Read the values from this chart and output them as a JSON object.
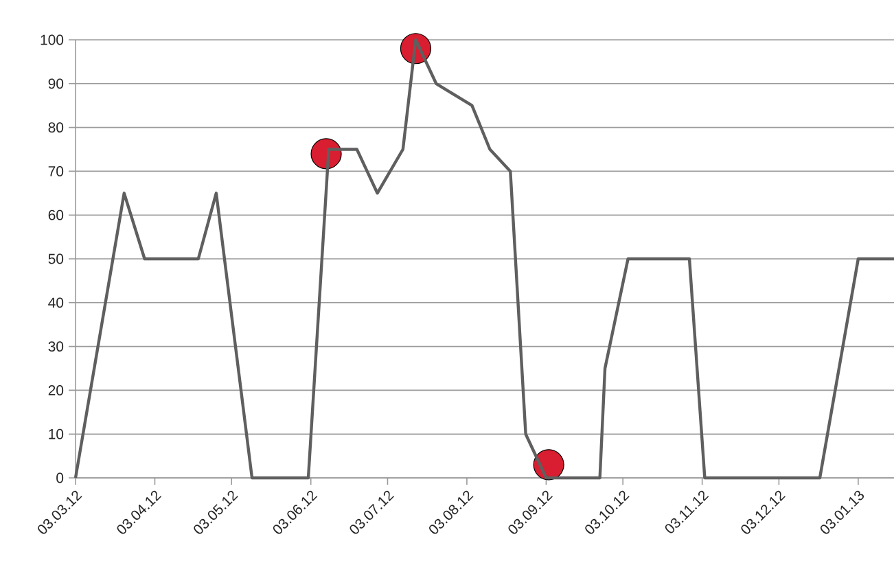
{
  "chart_data": {
    "type": "line",
    "x": [
      "2012-03-03",
      "2012-03-22",
      "2012-03-30",
      "2012-04-20",
      "2012-04-27",
      "2012-05-11",
      "2012-06-02",
      "2012-06-10",
      "2012-06-21",
      "2012-06-29",
      "2012-07-09",
      "2012-07-14",
      "2012-07-22",
      "2012-08-05",
      "2012-08-12",
      "2012-08-20",
      "2012-08-26",
      "2012-09-03",
      "2012-09-24",
      "2012-09-26",
      "2012-10-05",
      "2012-10-29",
      "2012-11-04",
      "2012-12-19",
      "2013-01-03",
      "2013-01-17"
    ],
    "series": [
      {
        "color": "#5f5f5f",
        "marker": "none",
        "values": [
          0,
          65,
          50,
          50,
          65,
          0,
          0,
          75,
          75,
          65,
          75,
          100,
          90,
          85,
          75,
          70,
          10,
          0,
          0,
          25,
          50,
          50,
          0,
          0,
          50,
          50
        ]
      },
      {
        "type": "scatter",
        "color": "#d81e30",
        "marker": "circle",
        "x": [
          "2012-06-09",
          "2012-07-14",
          "2012-09-04"
        ],
        "values": [
          74,
          98,
          3
        ]
      }
    ],
    "xlim": [
      "2012-03-03",
      "2013-01-17"
    ],
    "xticks": [
      {
        "value": "2012-03-03",
        "label": "03.03.12"
      },
      {
        "value": "2012-04-03",
        "label": "03.04.12"
      },
      {
        "value": "2012-05-03",
        "label": "03.05.12"
      },
      {
        "value": "2012-06-03",
        "label": "03.06.12"
      },
      {
        "value": "2012-07-03",
        "label": "03.07.12"
      },
      {
        "value": "2012-08-03",
        "label": "03.08.12"
      },
      {
        "value": "2012-09-03",
        "label": "03.09.12"
      },
      {
        "value": "2012-10-03",
        "label": "03.10.12"
      },
      {
        "value": "2012-11-03",
        "label": "03.11.12"
      },
      {
        "value": "2012-12-03",
        "label": "03.12.12"
      },
      {
        "value": "2013-01-03",
        "label": "03.01.13"
      }
    ],
    "ylim": [
      0,
      100
    ],
    "yticks": [
      0,
      10,
      20,
      30,
      40,
      50,
      60,
      70,
      80,
      90,
      100
    ],
    "grid": "y"
  }
}
